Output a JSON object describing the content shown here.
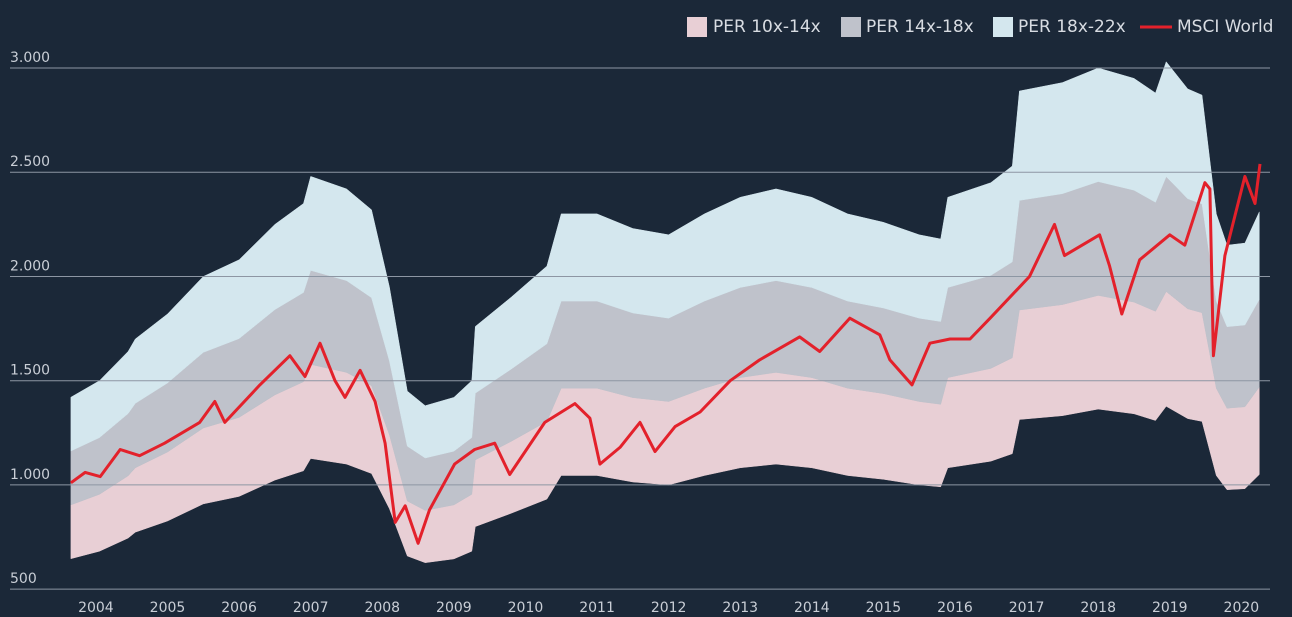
{
  "chart_data": {
    "type": "band-line",
    "legend": "top-right",
    "grid": true,
    "xlim": [
      2003.3,
      2020.9
    ],
    "ylim": [
      400,
      3050
    ],
    "xticks": [
      {
        "value": 2004.5,
        "label": "2004"
      },
      {
        "value": 2005.5,
        "label": "2005"
      },
      {
        "value": 2006.5,
        "label": "2006"
      },
      {
        "value": 2007.5,
        "label": "2007"
      },
      {
        "value": 2008.5,
        "label": "2008"
      },
      {
        "value": 2009.5,
        "label": "2009"
      },
      {
        "value": 2010.5,
        "label": "2010"
      },
      {
        "value": 2011.5,
        "label": "2011"
      },
      {
        "value": 2012.5,
        "label": "2012"
      },
      {
        "value": 2013.5,
        "label": "2013"
      },
      {
        "value": 2014.5,
        "label": "2014"
      },
      {
        "value": 2015.5,
        "label": "2015"
      },
      {
        "value": 2016.5,
        "label": "2016"
      },
      {
        "value": 2017.5,
        "label": "2017"
      },
      {
        "value": 2018.5,
        "label": "2018"
      },
      {
        "value": 2019.5,
        "label": "2019"
      },
      {
        "value": 2020.5,
        "label": "2020"
      }
    ],
    "yticks": [
      500,
      {
        "value": 1000,
        "label": "1.000"
      },
      {
        "value": 1500,
        "label": "1.500"
      },
      {
        "value": 2000,
        "label": "2.000"
      },
      {
        "value": 2500,
        "label": "2.500"
      },
      {
        "value": 3000,
        "label": "3.000"
      }
    ],
    "x": [
      2004.15,
      2004.55,
      2004.95,
      2005.05,
      2005.5,
      2006.0,
      2006.5,
      2007.0,
      2007.4,
      2007.5,
      2008.0,
      2008.35,
      2008.6,
      2008.85,
      2009.1,
      2009.5,
      2009.75,
      2009.8,
      2010.3,
      2010.8,
      2011.0,
      2011.5,
      2012.0,
      2012.5,
      2013.0,
      2013.5,
      2014.0,
      2014.5,
      2015.0,
      2015.5,
      2016.0,
      2016.3,
      2016.4,
      2017.0,
      2017.3,
      2017.4,
      2018.0,
      2018.5,
      2019.0,
      2019.3,
      2019.45,
      2019.75,
      2019.95,
      2020.15,
      2020.3,
      2020.55,
      2020.75
    ],
    "series": [
      {
        "name": "PER 10x-14x",
        "color": "#e8cfd5",
        "low": [
          646,
          682,
          745,
          773,
          827,
          909,
          945,
          1023,
          1068,
          1127,
          1100,
          1055,
          886,
          659,
          627,
          645,
          682,
          800,
          864,
          932,
          1045,
          1045,
          1014,
          1000,
          1045,
          1082,
          1100,
          1082,
          1045,
          1027,
          1000,
          991,
          1082,
          1114,
          1150,
          1314,
          1332,
          1364,
          1341,
          1309,
          1377,
          1318,
          1305,
          1045,
          977,
          982,
          1050
        ],
        "high": [
          904,
          955,
          1044,
          1082,
          1158,
          1273,
          1324,
          1432,
          1495,
          1578,
          1540,
          1476,
          1241,
          923,
          878,
          904,
          955,
          1120,
          1209,
          1305,
          1464,
          1464,
          1419,
          1400,
          1464,
          1515,
          1540,
          1515,
          1464,
          1438,
          1400,
          1387,
          1515,
          1559,
          1610,
          1839,
          1865,
          1909,
          1877,
          1833,
          1928,
          1845,
          1826,
          1464,
          1368,
          1375,
          1470
        ]
      },
      {
        "name": "PER 14x-18x",
        "color": "#bfc2cb",
        "low": [
          904,
          955,
          1044,
          1082,
          1158,
          1273,
          1324,
          1432,
          1495,
          1578,
          1540,
          1476,
          1241,
          923,
          878,
          904,
          955,
          1120,
          1209,
          1305,
          1464,
          1464,
          1419,
          1400,
          1464,
          1515,
          1540,
          1515,
          1464,
          1438,
          1400,
          1387,
          1515,
          1559,
          1610,
          1839,
          1865,
          1909,
          1877,
          1833,
          1928,
          1845,
          1826,
          1464,
          1368,
          1375,
          1470
        ],
        "high": [
          1163,
          1227,
          1342,
          1391,
          1489,
          1636,
          1702,
          1841,
          1923,
          2029,
          1980,
          1898,
          1595,
          1186,
          1129,
          1162,
          1227,
          1440,
          1555,
          1677,
          1882,
          1882,
          1825,
          1800,
          1882,
          1947,
          1980,
          1947,
          1882,
          1849,
          1800,
          1784,
          1947,
          2005,
          2070,
          2365,
          2397,
          2455,
          2414,
          2356,
          2479,
          2373,
          2348,
          1882,
          1759,
          1767,
          1890
        ]
      },
      {
        "name": "PER 18x-22x",
        "color": "#d4e7ee",
        "low": [
          1163,
          1227,
          1342,
          1391,
          1489,
          1636,
          1702,
          1841,
          1923,
          2029,
          1980,
          1898,
          1595,
          1186,
          1129,
          1162,
          1227,
          1440,
          1555,
          1677,
          1882,
          1882,
          1825,
          1800,
          1882,
          1947,
          1980,
          1947,
          1882,
          1849,
          1800,
          1784,
          1947,
          2005,
          2070,
          2365,
          2397,
          2455,
          2414,
          2356,
          2479,
          2373,
          2348,
          1882,
          1759,
          1767,
          1890
        ],
        "high": [
          1421,
          1500,
          1640,
          1700,
          1820,
          2000,
          2080,
          2250,
          2350,
          2480,
          2420,
          2320,
          1950,
          1450,
          1380,
          1420,
          1500,
          1760,
          1900,
          2050,
          2300,
          2300,
          2230,
          2200,
          2300,
          2380,
          2420,
          2380,
          2300,
          2260,
          2200,
          2180,
          2380,
          2450,
          2530,
          2890,
          2930,
          3000,
          2950,
          2880,
          3030,
          2900,
          2870,
          2300,
          2150,
          2160,
          2310
        ]
      },
      {
        "name": "MSCI World",
        "color": "#e3212b",
        "x": [
          2004.15,
          2004.35,
          2004.56,
          2004.84,
          2005.11,
          2005.46,
          2005.95,
          2006.16,
          2006.3,
          2006.79,
          2007.21,
          2007.42,
          2007.63,
          2007.84,
          2007.98,
          2008.19,
          2008.4,
          2008.54,
          2008.68,
          2008.82,
          2009.0,
          2009.16,
          2009.51,
          2009.79,
          2010.07,
          2010.28,
          2010.77,
          2011.19,
          2011.4,
          2011.54,
          2011.82,
          2012.1,
          2012.31,
          2012.59,
          2012.94,
          2013.36,
          2013.77,
          2014.33,
          2014.61,
          2015.03,
          2015.45,
          2015.59,
          2015.9,
          2016.15,
          2016.43,
          2016.71,
          2016.99,
          2017.54,
          2017.89,
          2018.03,
          2018.52,
          2018.66,
          2018.83,
          2019.08,
          2019.5,
          2019.71,
          2019.99,
          2020.06,
          2020.11,
          2020.27,
          2020.55,
          2020.69,
          2020.76
        ],
        "values": [
          1010,
          1060,
          1040,
          1170,
          1140,
          1200,
          1300,
          1400,
          1300,
          1480,
          1620,
          1520,
          1680,
          1500,
          1420,
          1550,
          1400,
          1200,
          820,
          900,
          720,
          880,
          1100,
          1170,
          1200,
          1050,
          1300,
          1390,
          1320,
          1100,
          1180,
          1300,
          1160,
          1280,
          1350,
          1500,
          1600,
          1710,
          1640,
          1800,
          1720,
          1600,
          1480,
          1680,
          1700,
          1700,
          1800,
          2000,
          2250,
          2100,
          2200,
          2050,
          1820,
          2080,
          2200,
          2150,
          2450,
          2420,
          1620,
          2100,
          2480,
          2350,
          2540
        ]
      }
    ]
  }
}
